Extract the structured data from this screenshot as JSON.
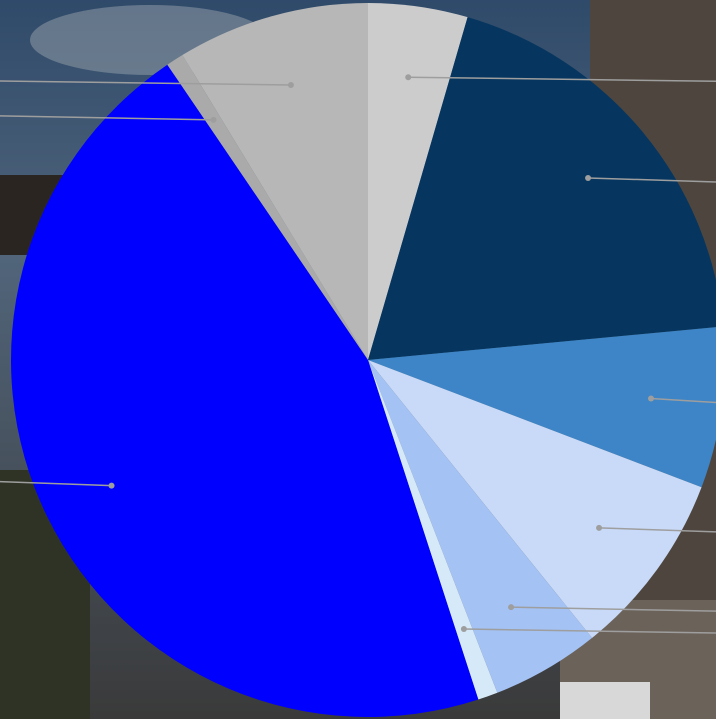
{
  "chart_data": {
    "type": "pie",
    "title": "",
    "legend": "none",
    "slices": [
      {
        "value": 4.5,
        "color": "#cccccc"
      },
      {
        "value": 19.0,
        "color": "#06365f"
      },
      {
        "value": 7.3,
        "color": "#3d85c6"
      },
      {
        "value": 8.4,
        "color": "#c9daf8"
      },
      {
        "value": 4.9,
        "color": "#a4c2f4"
      },
      {
        "value": 0.9,
        "color": "#d6e9f8"
      },
      {
        "value": 45.5,
        "color": "#0000ff"
      },
      {
        "value": 0.8,
        "color": "#aaaaaa"
      },
      {
        "value": 8.7,
        "color": "#b7b7b7"
      }
    ],
    "leader_color": "#9e9e9e"
  }
}
